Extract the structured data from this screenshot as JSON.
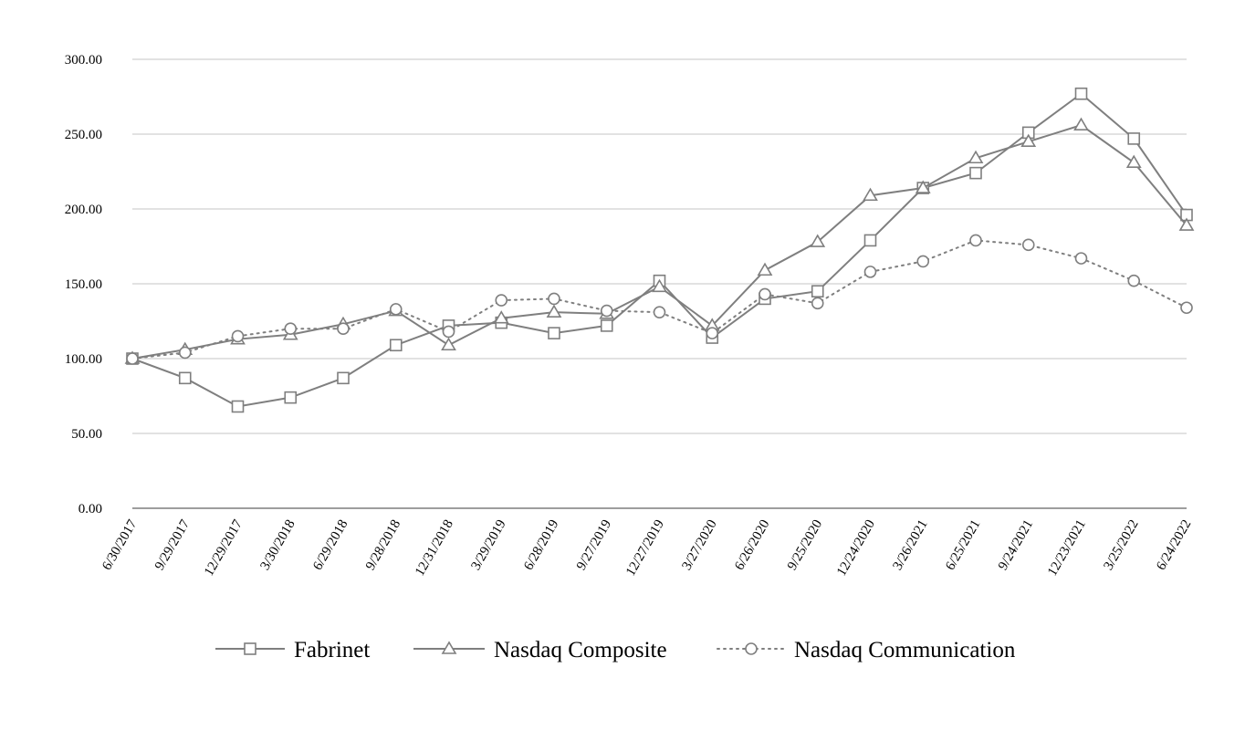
{
  "chart_data": {
    "type": "line",
    "categories": [
      "6/30/2017",
      "9/29/2017",
      "12/29/2017",
      "3/30/2018",
      "6/29/2018",
      "9/28/2018",
      "12/31/2018",
      "3/29/2019",
      "6/28/2019",
      "9/27/2019",
      "12/27/2019",
      "3/27/2020",
      "6/26/2020",
      "9/25/2020",
      "12/24/2020",
      "3/26/2021",
      "6/25/2021",
      "9/24/2021",
      "12/23/2021",
      "3/25/2022",
      "6/24/2022"
    ],
    "ylim": [
      0,
      300
    ],
    "yticks": [
      "0.00",
      "50.00",
      "100.00",
      "150.00",
      "200.00",
      "250.00",
      "300.00"
    ],
    "grid": true,
    "legend_position": "bottom",
    "title": "",
    "xlabel": "",
    "ylabel": "",
    "series": [
      {
        "name": "Fabrinet",
        "marker": "square",
        "style": "solid",
        "color": "#7f7f7f",
        "values": [
          100,
          87,
          68,
          74,
          87,
          109,
          122,
          124,
          117,
          122,
          152,
          114,
          140,
          145,
          179,
          214,
          224,
          251,
          277,
          247,
          196
        ]
      },
      {
        "name": "Nasdaq Composite",
        "marker": "triangle",
        "style": "solid",
        "color": "#7f7f7f",
        "values": [
          100,
          106,
          113,
          116,
          123,
          132,
          109,
          127,
          131,
          130,
          148,
          122,
          159,
          178,
          209,
          214,
          234,
          245,
          256,
          231,
          189
        ]
      },
      {
        "name": "Nasdaq Communication",
        "marker": "circle",
        "style": "dotted",
        "color": "#7f7f7f",
        "values": [
          100,
          104,
          115,
          120,
          120,
          133,
          118,
          139,
          140,
          132,
          131,
          117,
          143,
          137,
          158,
          165,
          179,
          176,
          167,
          152,
          134
        ]
      }
    ]
  }
}
